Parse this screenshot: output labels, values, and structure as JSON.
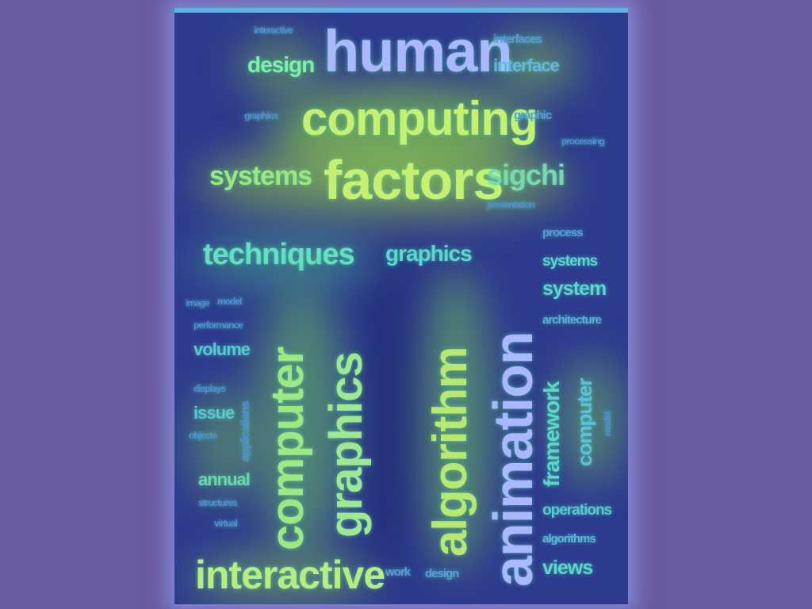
{
  "colors": {
    "background": "#6a5ba0",
    "panel": "#2d3a8e",
    "word_light": "#a9b8ff",
    "word_green": "#7ef0a8",
    "word_yellow": "#c6f070",
    "word_cyan": "#57d8d0",
    "word_faint": "#4f8fd8"
  },
  "words": {
    "human": "human",
    "interactive_top": "interactive",
    "interfaces": "interfaces",
    "design_top": "design",
    "interface": "interface",
    "computing": "computing",
    "graphics_small_left": "graphics",
    "graphic": "graphic",
    "processing": "processing",
    "systems_left": "systems",
    "factors": "factors",
    "sigchi": "sigchi",
    "presentation": "presentation",
    "techniques": "techniques",
    "graphics_mid": "graphics",
    "process": "process",
    "systems_right": "systems",
    "system": "system",
    "architecture": "architecture",
    "image": "image",
    "model": "model",
    "performance": "performance",
    "volume": "volume",
    "displays": "displays",
    "issue": "issue",
    "objects": "objects",
    "applications": "applications",
    "annual": "annual",
    "structures": "structures",
    "virtual": "virtual",
    "computer_big": "computer",
    "graphics_big": "graphics",
    "algorithm": "algorithm",
    "animation": "animation",
    "framework": "framework",
    "computer_small": "computer",
    "model_right": "model",
    "operations": "operations",
    "algorithms": "algorithms",
    "views": "views",
    "interactive_bottom": "interactive",
    "work": "work",
    "design_bottom": "design"
  }
}
